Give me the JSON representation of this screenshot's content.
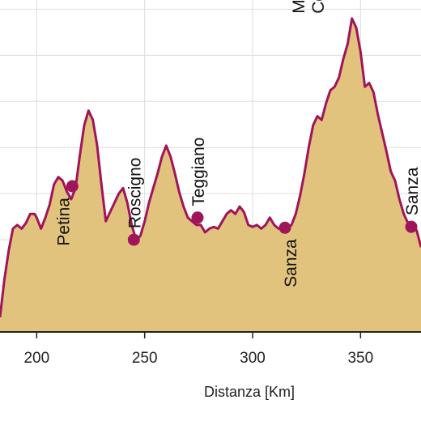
{
  "chart_data": {
    "type": "area",
    "title": "",
    "xlabel": "Distanza [Km]",
    "ylabel": "",
    "xlim": [
      183,
      378
    ],
    "ylim": [
      0,
      1800
    ],
    "x_ticks": [
      200,
      250,
      300,
      350
    ],
    "y_gridlines": [
      250,
      500,
      750,
      1000,
      1250,
      1500,
      1750
    ],
    "grid": true,
    "colors": {
      "line": "#a0155a",
      "fill": "#e2c37e",
      "marker": "#a0155a",
      "grid": "#dddddd",
      "axis": "#222222"
    },
    "series": [
      {
        "name": "",
        "x": [
          183,
          185,
          187,
          189,
          191,
          193,
          195,
          197,
          199,
          200,
          202,
          204,
          206,
          208,
          210,
          212,
          214,
          216,
          218,
          220,
          222,
          224,
          226,
          228,
          230,
          232,
          234,
          236,
          238,
          240,
          242,
          244,
          246,
          248,
          250,
          252,
          254,
          256,
          258,
          260,
          262,
          264,
          266,
          268,
          270,
          272,
          274,
          276,
          278,
          280,
          282,
          284,
          286,
          288,
          290,
          292,
          294,
          296,
          298,
          300,
          302,
          304,
          306,
          308,
          310,
          312,
          314,
          316,
          318,
          320,
          322,
          324,
          326,
          328,
          330,
          332,
          334,
          336,
          338,
          340,
          342,
          344,
          346,
          348,
          350,
          352,
          354,
          356,
          358,
          360,
          362,
          364,
          366,
          368,
          370,
          372,
          374,
          376,
          378
        ],
        "y": [
          80,
          280,
          440,
          560,
          580,
          560,
          590,
          640,
          640,
          620,
          560,
          620,
          690,
          800,
          840,
          820,
          760,
          720,
          780,
          960,
          1120,
          1200,
          1150,
          1010,
          800,
          600,
          650,
          700,
          750,
          780,
          700,
          580,
          500,
          520,
          600,
          700,
          780,
          860,
          950,
          1010,
          950,
          860,
          760,
          680,
          620,
          600,
          580,
          580,
          540,
          560,
          570,
          560,
          600,
          640,
          660,
          640,
          680,
          650,
          580,
          570,
          580,
          560,
          580,
          620,
          580,
          560,
          570,
          560,
          580,
          640,
          740,
          860,
          1000,
          1120,
          1170,
          1150,
          1240,
          1310,
          1330,
          1380,
          1480,
          1560,
          1700,
          1650,
          1520,
          1330,
          1350,
          1300,
          1180,
          1080,
          980,
          870,
          820,
          720,
          640,
          590,
          570,
          550,
          460
        ]
      }
    ],
    "annotations": [
      {
        "label": "Petina",
        "x": 216.5,
        "y": 790,
        "text_side": "below"
      },
      {
        "label": "Roscigno",
        "x": 245,
        "y": 500,
        "text_side": "above"
      },
      {
        "label": "Teggiano",
        "x": 274.5,
        "y": 620,
        "text_side": "above"
      },
      {
        "label": "Sanza",
        "x": 315,
        "y": 565,
        "text_side": "below"
      },
      {
        "label": "Monte",
        "label2": "Cervati",
        "x": 345,
        "y": 1700,
        "text_side": "above"
      },
      {
        "label": "Sanza",
        "x": 373.5,
        "y": 570,
        "text_side": "above"
      }
    ]
  }
}
